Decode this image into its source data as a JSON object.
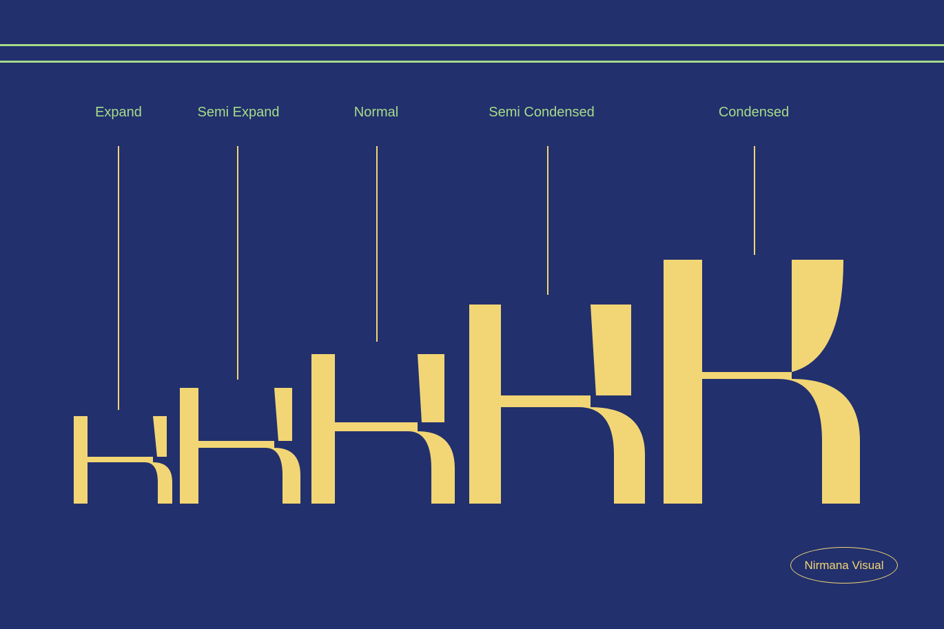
{
  "colors": {
    "background": "#22306d",
    "rule": "#a6dc8a",
    "label": "#a6dc8a",
    "glyph": "#f2d675",
    "brand": "#f2d675"
  },
  "widths": [
    {
      "label": "Expand"
    },
    {
      "label": "Semi Expand"
    },
    {
      "label": "Normal"
    },
    {
      "label": "Semi Condensed"
    },
    {
      "label": "Condensed"
    }
  ],
  "brand": {
    "text": "Nirmana Visual"
  }
}
